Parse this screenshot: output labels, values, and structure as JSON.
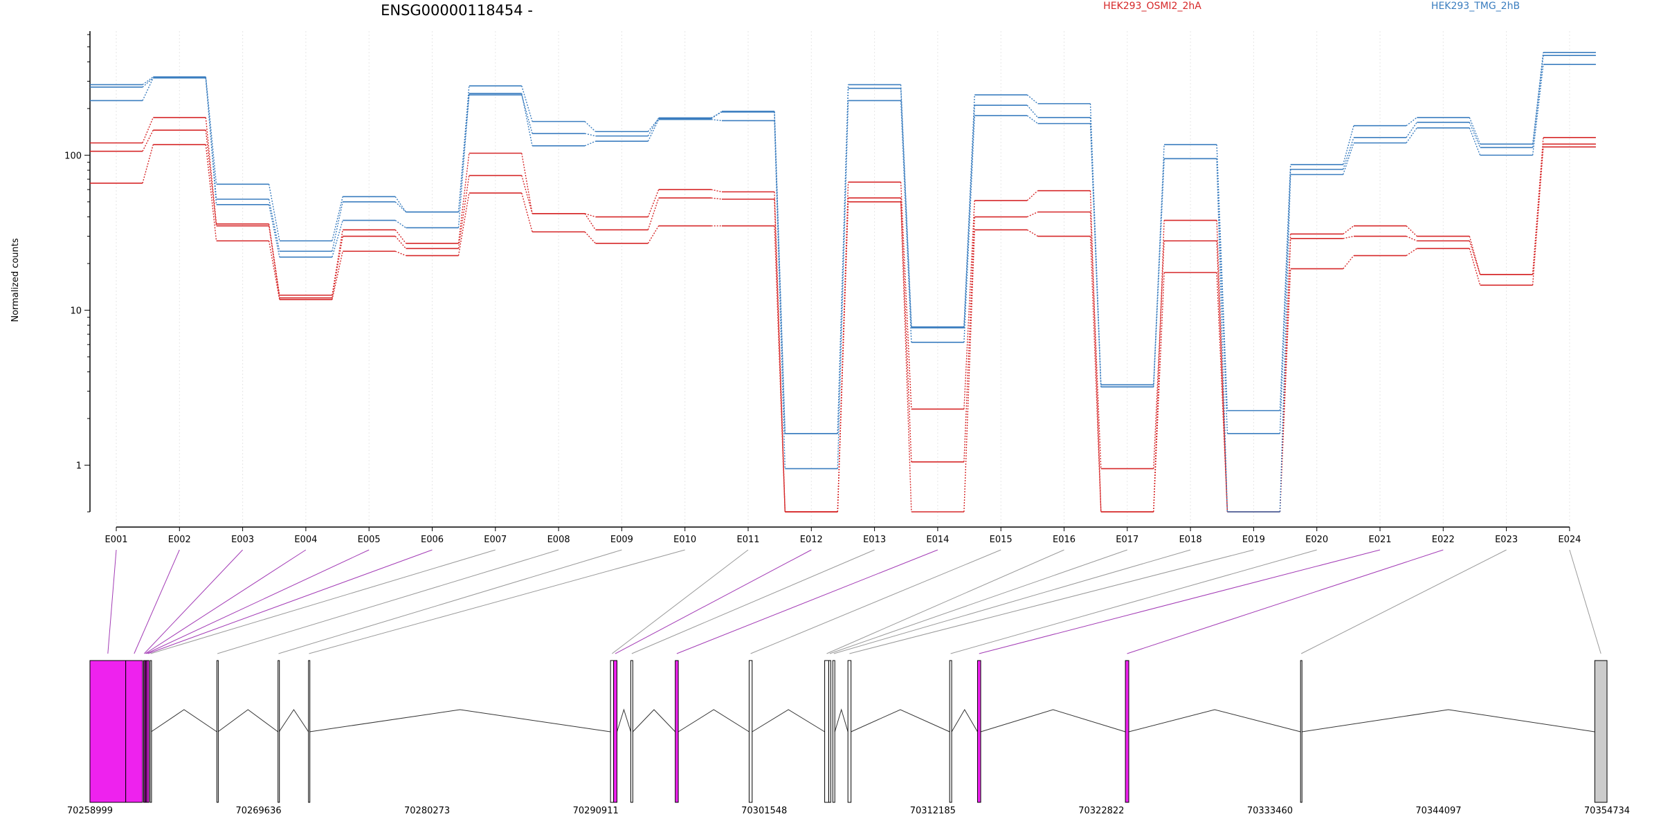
{
  "chart_data": {
    "type": "line",
    "title": "ENSG00000118454 -",
    "ylabel": "Normalized counts",
    "yscale": "log",
    "ylim": [
      0.5,
      600
    ],
    "yticks": [
      1,
      10,
      100
    ],
    "ytick_labels": [
      "1",
      "10",
      "100"
    ],
    "categories": [
      "E001",
      "E002",
      "E003",
      "E004",
      "E005",
      "E006",
      "E007",
      "E008",
      "E009",
      "E010",
      "E011",
      "E012",
      "E013",
      "E014",
      "E015",
      "E016",
      "E017",
      "E018",
      "E019",
      "E020",
      "E021",
      "E022",
      "E023",
      "E024"
    ],
    "legend": [
      {
        "name": "HEK293_OSMI2_2hA",
        "color": "#d62728"
      },
      {
        "name": "HEK293_TMG_2hB",
        "color": "#3a7dbf"
      }
    ],
    "series": [
      {
        "group": "HEK293_OSMI2_2hA",
        "color": "#d62728",
        "values": [
          120,
          175,
          36,
          12.5,
          33,
          27,
          103,
          42,
          40,
          60,
          58,
          0.5,
          67,
          2.3,
          51,
          59,
          0.5,
          38,
          0.5,
          31,
          35,
          30,
          17,
          130
        ]
      },
      {
        "group": "HEK293_OSMI2_2hA",
        "color": "#d62728",
        "values": [
          106,
          145,
          35,
          12,
          30,
          25,
          74,
          42,
          33,
          53,
          52,
          0.5,
          53,
          1.05,
          40,
          43,
          0.95,
          28,
          0.5,
          29,
          30,
          28,
          17,
          118
        ]
      },
      {
        "group": "HEK293_OSMI2_2hA",
        "color": "#d62728",
        "values": [
          66,
          117,
          28,
          11.7,
          24,
          22.5,
          57,
          32,
          27,
          35,
          35,
          0.5,
          50,
          0.5,
          33,
          30,
          0.5,
          17.5,
          0.5,
          18.5,
          22.5,
          25,
          14.5,
          113
        ]
      },
      {
        "group": "HEK293_TMG_2hB",
        "color": "#3a7dbf",
        "values": [
          285,
          320,
          65,
          28,
          54,
          43,
          280,
          165,
          142,
          172,
          192,
          1.6,
          285,
          7.8,
          245,
          215,
          3.3,
          117,
          2.25,
          87,
          155,
          175,
          118,
          460
        ]
      },
      {
        "group": "HEK293_TMG_2hB",
        "color": "#3a7dbf",
        "values": [
          275,
          315,
          52,
          24,
          50,
          43,
          245,
          138,
          133,
          174,
          190,
          1.6,
          270,
          7.7,
          210,
          175,
          3.2,
          95,
          1.6,
          81,
          130,
          163,
          112,
          440
        ]
      },
      {
        "group": "HEK293_TMG_2hB",
        "color": "#3a7dbf",
        "values": [
          225,
          315,
          48,
          22,
          38,
          34,
          250,
          115,
          123,
          170,
          167,
          0.95,
          225,
          6.2,
          180,
          160,
          3.2,
          95,
          0.5,
          75,
          120,
          150,
          100,
          385
        ]
      }
    ],
    "genomic_axis": {
      "ticks": [
        "70258999",
        "70269636",
        "70280273",
        "70290911",
        "70301548",
        "70312185",
        "70322822",
        "70333460",
        "70344097",
        "70354734"
      ],
      "range": [
        70258999,
        70354734
      ]
    },
    "exon_mapping": [
      {
        "exon": "E001",
        "start": 70258999,
        "end": 70261255,
        "significant": true
      },
      {
        "exon": "E002",
        "start": 70261255,
        "end": 70262319,
        "significant": true
      },
      {
        "exon": "E003",
        "start": 70262387,
        "end": 70262455,
        "significant": true
      },
      {
        "exon": "E004",
        "start": 70262455,
        "end": 70262523,
        "significant": true
      },
      {
        "exon": "E005",
        "start": 70262523,
        "end": 70262591,
        "significant": true
      },
      {
        "exon": "E006",
        "start": 70262591,
        "end": 70262722,
        "significant": true
      },
      {
        "exon": "E007",
        "start": 70262795,
        "end": 70262861,
        "significant": false
      },
      {
        "exon": "E008",
        "start": 70267009,
        "end": 70267075,
        "significant": false
      },
      {
        "exon": "E009",
        "start": 70270866,
        "end": 70270932,
        "significant": false
      },
      {
        "exon": "E010",
        "start": 70272788,
        "end": 70272854,
        "significant": false
      },
      {
        "exon": "E011",
        "start": 70291848,
        "end": 70292042,
        "significant": false
      },
      {
        "exon": "E012",
        "start": 70292042,
        "end": 70292256,
        "significant": true
      },
      {
        "exon": "E013",
        "start": 70293127,
        "end": 70293254,
        "significant": false
      },
      {
        "exon": "E014",
        "start": 70295934,
        "end": 70296126,
        "significant": true
      },
      {
        "exon": "E015",
        "start": 70300596,
        "end": 70300787,
        "significant": false
      },
      {
        "exon": "E016",
        "start": 70305364,
        "end": 70305620,
        "significant": false
      },
      {
        "exon": "E017",
        "start": 70305620,
        "end": 70305748,
        "significant": false
      },
      {
        "exon": "E018",
        "start": 70305876,
        "end": 70306003,
        "significant": false
      },
      {
        "exon": "E019",
        "start": 70306831,
        "end": 70307026,
        "significant": false
      },
      {
        "exon": "E020",
        "start": 70313250,
        "end": 70313378,
        "significant": false
      },
      {
        "exon": "E021",
        "start": 70315010,
        "end": 70315210,
        "significant": true
      },
      {
        "exon": "E022",
        "start": 70324340,
        "end": 70324554,
        "significant": true
      },
      {
        "exon": "E023",
        "start": 70335395,
        "end": 70335480,
        "significant": false
      },
      {
        "exon": "E024",
        "start": 70353962,
        "end": 70354734,
        "significant": false
      }
    ],
    "highlight_color": "#ee22ee",
    "grid": true
  }
}
